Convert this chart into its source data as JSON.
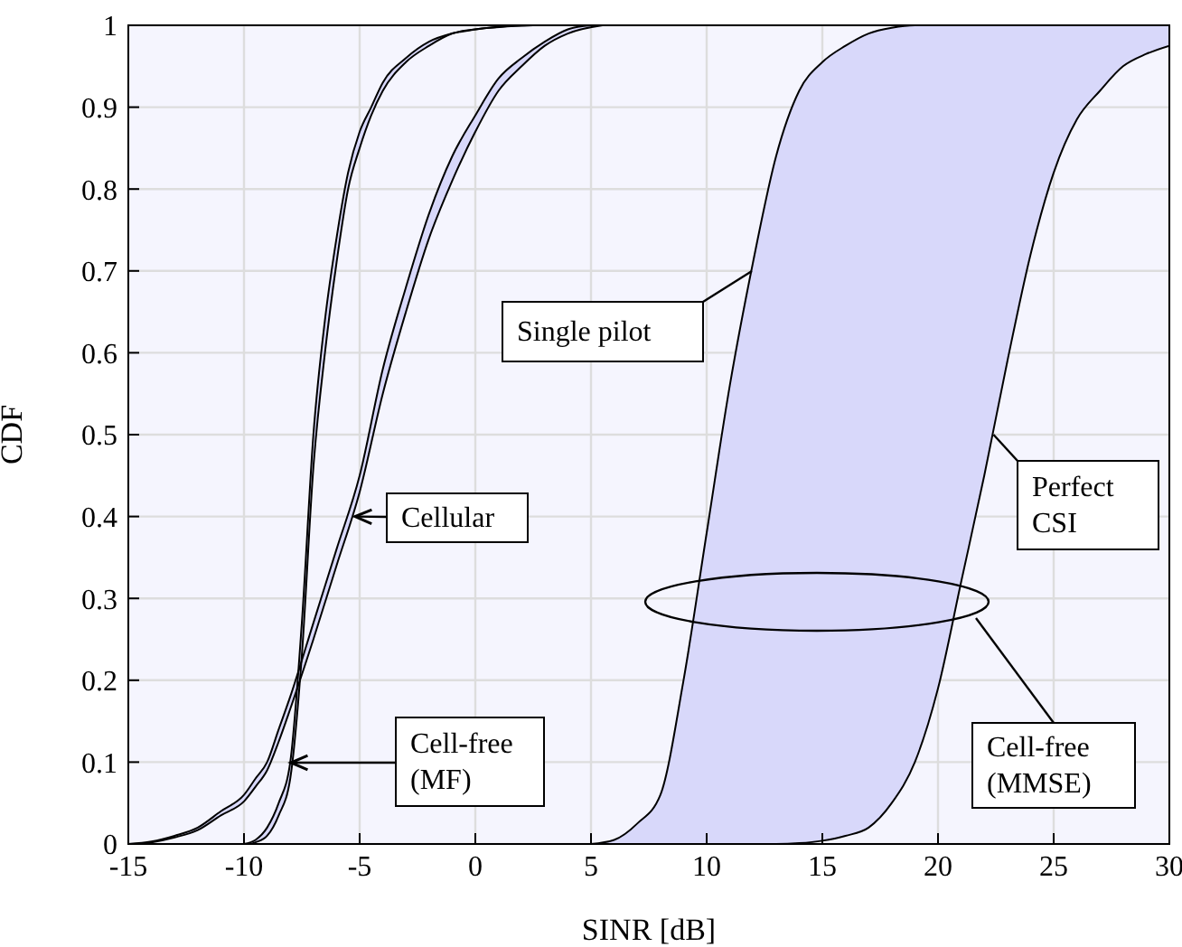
{
  "chart_data": {
    "type": "line",
    "xlabel": "SINR [dB]",
    "ylabel": "CDF",
    "xlim": [
      -15,
      30
    ],
    "ylim": [
      0,
      1
    ],
    "xticks": [
      -15,
      -10,
      -5,
      0,
      5,
      10,
      15,
      20,
      25,
      30
    ],
    "yticks": [
      0,
      0.1,
      0.2,
      0.3,
      0.4,
      0.5,
      0.6,
      0.7,
      0.8,
      0.9,
      1
    ],
    "grid": true,
    "legend": false,
    "marker": "none",
    "line_style": "solid",
    "series": [
      {
        "color": "#000000",
        "x": [
          -15,
          -14,
          -13,
          -12,
          -11,
          -10,
          -9.5,
          -9,
          -8.5,
          -8,
          -7,
          -6,
          -5,
          -4,
          -3,
          -2,
          -1,
          0,
          1,
          2,
          3,
          4,
          5
        ],
        "values": [
          0,
          0.003,
          0.01,
          0.02,
          0.04,
          0.06,
          0.08,
          0.1,
          0.14,
          0.18,
          0.27,
          0.36,
          0.45,
          0.58,
          0.68,
          0.77,
          0.84,
          0.89,
          0.935,
          0.96,
          0.98,
          0.995,
          1
        ]
      },
      {
        "color": "#000000",
        "x": [
          -14.5,
          -14,
          -13,
          -12,
          -11,
          -10,
          -9.5,
          -9,
          -8.5,
          -8,
          -7,
          -6,
          -5,
          -4,
          -3,
          -2,
          -1,
          0,
          1,
          2,
          3,
          4,
          5.5
        ],
        "values": [
          0,
          0.002,
          0.008,
          0.017,
          0.035,
          0.052,
          0.07,
          0.09,
          0.125,
          0.165,
          0.25,
          0.34,
          0.43,
          0.55,
          0.65,
          0.74,
          0.81,
          0.87,
          0.92,
          0.95,
          0.975,
          0.99,
          1
        ]
      },
      {
        "color": "#000000",
        "x": [
          -10,
          -9.5,
          -9,
          -8.5,
          -8,
          -7.5,
          -7,
          -6.5,
          -6,
          -5.5,
          -5,
          -4.5,
          -4,
          -3,
          -2,
          -1,
          0,
          2
        ],
        "values": [
          0,
          0.005,
          0.02,
          0.05,
          0.1,
          0.27,
          0.5,
          0.64,
          0.74,
          0.82,
          0.87,
          0.9,
          0.93,
          0.96,
          0.98,
          0.99,
          0.995,
          1
        ]
      },
      {
        "color": "#000000",
        "x": [
          -9.7,
          -9.5,
          -9,
          -8.5,
          -8,
          -7.5,
          -7,
          -6.5,
          -6,
          -5.5,
          -5,
          -4.5,
          -4,
          -3,
          -2,
          -1,
          0,
          2.5
        ],
        "values": [
          0,
          0.002,
          0.01,
          0.035,
          0.08,
          0.23,
          0.46,
          0.6,
          0.71,
          0.8,
          0.85,
          0.89,
          0.92,
          0.955,
          0.975,
          0.99,
          0.995,
          1
        ]
      },
      {
        "color": "#000000",
        "x": [
          5,
          6,
          7,
          8,
          9,
          10,
          11,
          12,
          13,
          14,
          15,
          16,
          17,
          18,
          19,
          20,
          21,
          22,
          23,
          24,
          25,
          26,
          27,
          28,
          29,
          30
        ],
        "values": [
          0,
          0.005,
          0.025,
          0.06,
          0.2,
          0.38,
          0.56,
          0.71,
          0.84,
          0.92,
          0.955,
          0.975,
          0.99,
          0.997,
          1,
          1,
          1,
          1,
          1,
          1,
          1,
          1,
          1,
          1,
          1,
          1
        ]
      },
      {
        "color": "#000000",
        "x": [
          5.5,
          6,
          7,
          8,
          9,
          10,
          11,
          12,
          13,
          14,
          15,
          16,
          17,
          18,
          19,
          20,
          21,
          22,
          23,
          24,
          25,
          26,
          27,
          28,
          29,
          30
        ],
        "values": [
          0,
          0,
          0,
          0,
          0,
          0,
          0,
          0,
          0,
          0.001,
          0.004,
          0.01,
          0.02,
          0.05,
          0.1,
          0.19,
          0.32,
          0.45,
          0.59,
          0.72,
          0.82,
          0.885,
          0.92,
          0.95,
          0.965,
          0.975
        ]
      }
    ],
    "annotations": [
      {
        "text": "Cellular",
        "x": -5.2,
        "y": 0.4
      },
      "Cell-free\n(MF)",
      "Single pilot",
      {
        "text": "Perfect\nCSI",
        "x": 22.4,
        "y": 0.5
      },
      "Cell-free\n(MMSE)"
    ]
  }
}
